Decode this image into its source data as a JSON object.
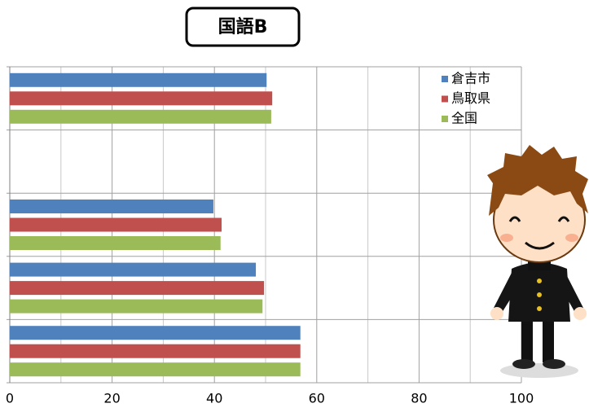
{
  "chart_data": {
    "type": "hbar",
    "title": "国語B",
    "categories": [
      null,
      null,
      null,
      null,
      null
    ],
    "series": [
      {
        "name": "倉吉市",
        "color": "#4f81bd",
        "values": [
          50.2,
          null,
          39.8,
          48.1,
          56.8
        ]
      },
      {
        "name": "鳥取県",
        "color": "#c0504d",
        "values": [
          51.3,
          null,
          41.4,
          49.7,
          56.8
        ]
      },
      {
        "name": "全国",
        "color": "#9bbb59",
        "values": [
          51.1,
          null,
          41.2,
          49.4,
          56.8
        ]
      }
    ],
    "xlim": [
      0,
      100
    ],
    "xticks": [
      0,
      20,
      40,
      60,
      80,
      100
    ],
    "minor_xticks": [
      10,
      30,
      50,
      70,
      90
    ],
    "grid": true,
    "legend": "top-right"
  }
}
